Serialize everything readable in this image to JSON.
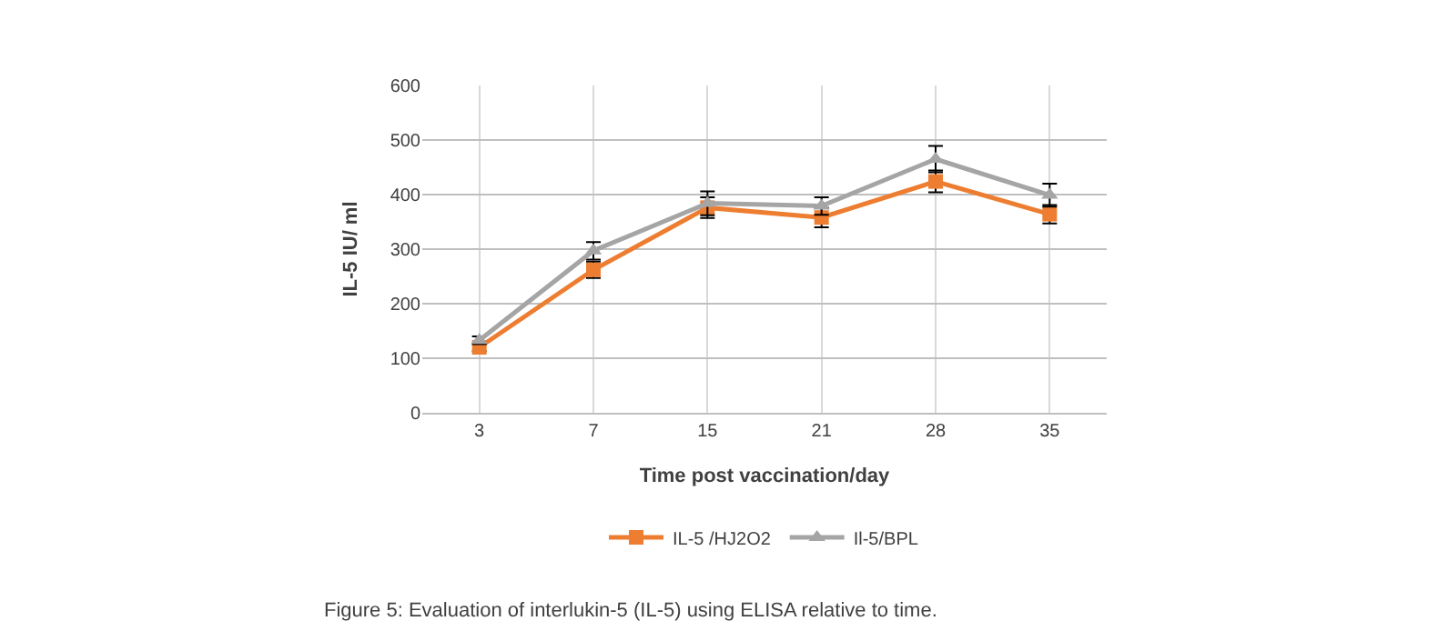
{
  "chart_data": {
    "type": "line",
    "xlabel": "Time post vaccination/day",
    "ylabel": "IL-5 IU/ ml",
    "categories": [
      "3",
      "7",
      "15",
      "21",
      "28",
      "35"
    ],
    "series": [
      {
        "name": "IL-5 /HJ2O2",
        "color": "#ed7d31",
        "marker": "square",
        "values": [
          120,
          262,
          376,
          358,
          424,
          364
        ],
        "errors": [
          7,
          15,
          19,
          18,
          20,
          17
        ]
      },
      {
        "name": "Il-5/BPL",
        "color": "#a5a5a5",
        "marker": "triangle",
        "values": [
          133,
          297,
          384,
          379,
          465,
          399
        ],
        "errors": [
          7,
          16,
          22,
          16,
          24,
          21
        ]
      }
    ],
    "ylim": [
      0,
      600
    ],
    "yticks": [
      0,
      100,
      200,
      300,
      400,
      500,
      600
    ],
    "grid": true,
    "legend": "bottom",
    "annotations": [
      "Figure 5: Evaluation of interlukin-5 (IL-5) using ELISA relative to time."
    ]
  }
}
